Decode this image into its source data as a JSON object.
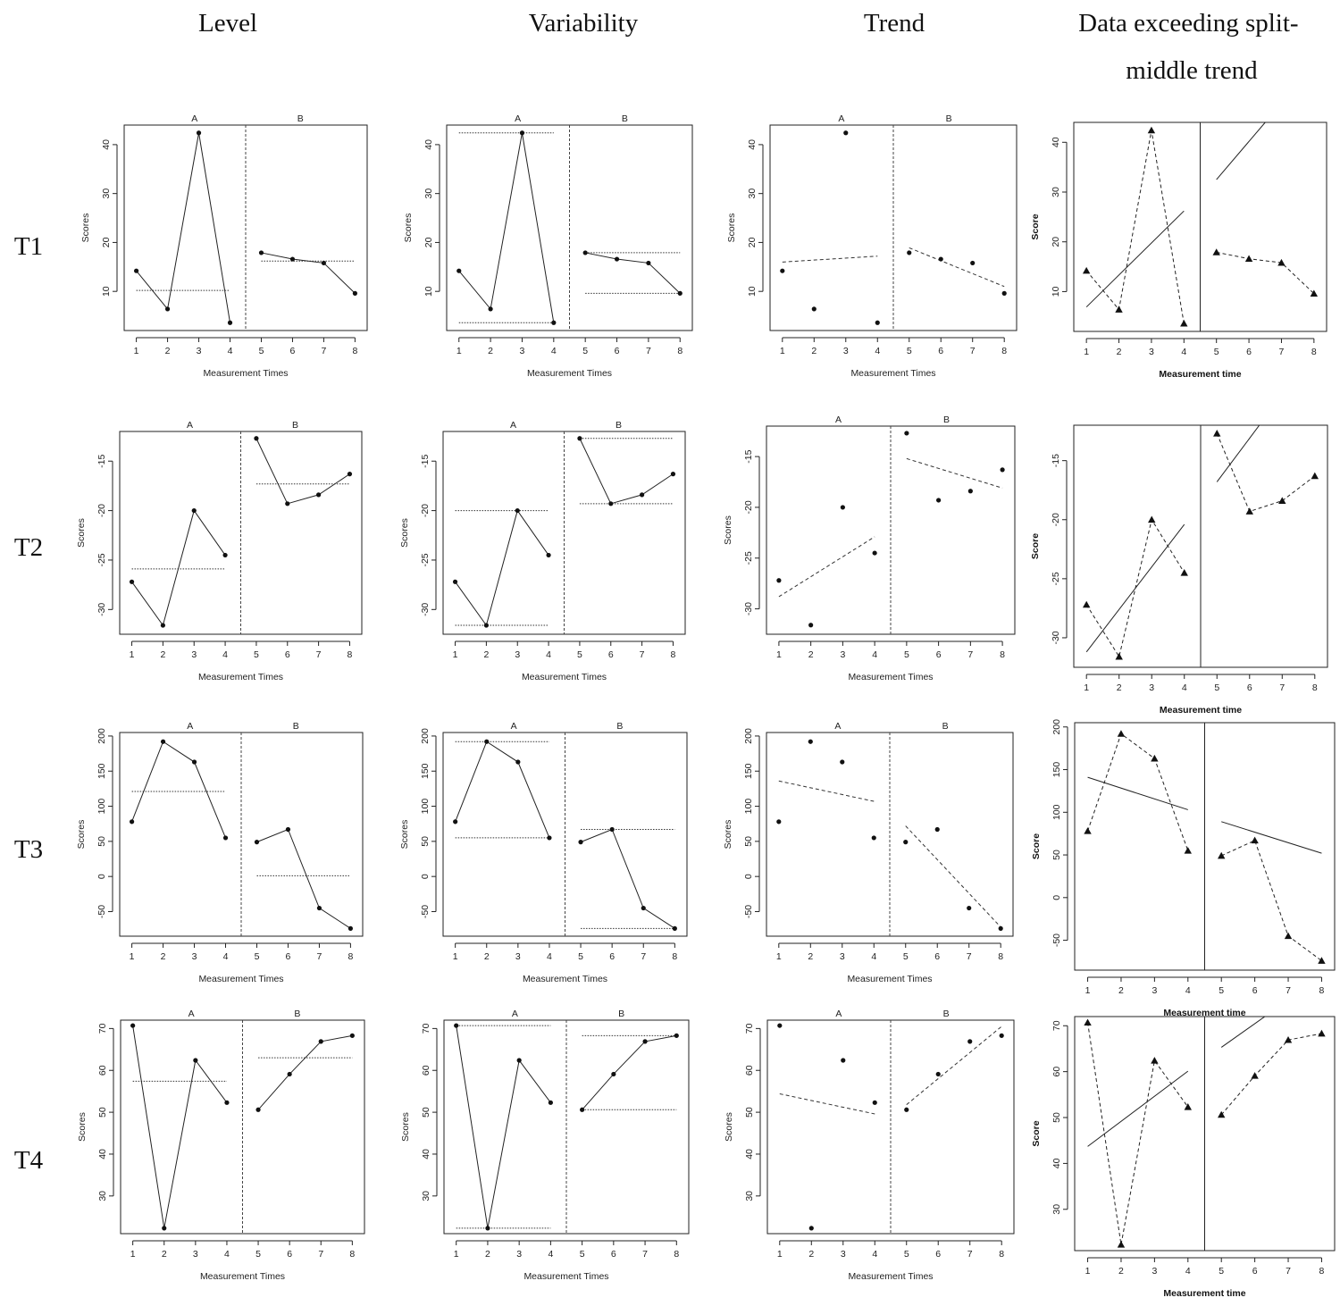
{
  "column_titles": [
    "Level",
    "Variability",
    "Trend",
    "Data exceeding split-middle trend"
  ],
  "row_labels": [
    "T1",
    "T2",
    "T3",
    "T4"
  ],
  "x_label": "Measurement Times",
  "x_label_alt": "Measurement time",
  "y_label": "Scores",
  "y_label_alt": "Score",
  "phase_labels": [
    "A",
    "B"
  ],
  "x_ticks": [
    1,
    2,
    3,
    4,
    5,
    6,
    7,
    8
  ],
  "phase_change_after": 4.5,
  "chart_data": [
    {
      "id": "T1",
      "type": "line",
      "x": [
        1,
        2,
        3,
        4,
        5,
        6,
        7,
        8
      ],
      "values": [
        14.2,
        6.4,
        42.4,
        3.6,
        17.9,
        16.6,
        15.8,
        9.6
      ],
      "ylim": [
        2,
        44
      ],
      "yticks": [
        10,
        20,
        30,
        40
      ],
      "level": {
        "A": 10.2,
        "B": 16.2
      },
      "variability": {
        "A": [
          3.6,
          42.4
        ],
        "B": [
          9.6,
          17.9
        ]
      },
      "trend": {
        "A": [
          [
            1,
            16.0
          ],
          [
            4,
            17.2
          ]
        ],
        "B": [
          [
            5,
            18.9
          ],
          [
            8,
            11.0
          ]
        ]
      },
      "split_middle": {
        "A": [
          [
            1,
            6.9
          ],
          [
            4,
            26.2
          ]
        ],
        "B": [
          [
            5,
            32.5
          ],
          [
            6.5,
            44
          ]
        ]
      }
    },
    {
      "id": "T2",
      "type": "line",
      "x": [
        1,
        2,
        3,
        4,
        5,
        6,
        7,
        8
      ],
      "values": [
        -27.2,
        -31.6,
        -20.0,
        -24.5,
        -12.7,
        -19.3,
        -18.4,
        -16.3
      ],
      "ylim": [
        -32.5,
        -12
      ],
      "yticks": [
        -15,
        -20,
        -25,
        -30
      ],
      "level": {
        "A": -25.9,
        "B": -17.3
      },
      "variability": {
        "A": [
          -31.6,
          -20.0
        ],
        "B": [
          -19.3,
          -12.7
        ]
      },
      "trend": {
        "A": [
          [
            1,
            -28.8
          ],
          [
            4,
            -22.9
          ]
        ],
        "B": [
          [
            5,
            -15.2
          ],
          [
            8,
            -18.1
          ]
        ]
      },
      "split_middle": {
        "A": [
          [
            1,
            -31.2
          ],
          [
            4,
            -20.4
          ]
        ],
        "B": [
          [
            5,
            -16.8
          ],
          [
            6.3,
            -12
          ]
        ]
      }
    },
    {
      "id": "T3",
      "type": "line",
      "x": [
        1,
        2,
        3,
        4,
        5,
        6,
        7,
        8
      ],
      "values": [
        78,
        192,
        163,
        55,
        49,
        67,
        -45,
        -74
      ],
      "ylim": [
        -85,
        205
      ],
      "yticks": [
        200,
        150,
        100,
        50,
        0,
        -50
      ],
      "level": {
        "A": 121,
        "B": 1
      },
      "variability": {
        "A": [
          55,
          192
        ],
        "B": [
          -74,
          67
        ]
      },
      "trend": {
        "A": [
          [
            1,
            136
          ],
          [
            4,
            107
          ]
        ],
        "B": [
          [
            5,
            72
          ],
          [
            8,
            -72
          ]
        ]
      },
      "split_middle": {
        "A": [
          [
            1,
            141
          ],
          [
            4,
            103
          ]
        ],
        "B": [
          [
            5,
            89
          ],
          [
            8,
            52
          ]
        ]
      }
    },
    {
      "id": "T4",
      "type": "line",
      "x": [
        1,
        2,
        3,
        4,
        5,
        6,
        7,
        8
      ],
      "values": [
        70.7,
        22.3,
        62.4,
        52.3,
        50.6,
        59.1,
        66.9,
        68.3
      ],
      "ylim": [
        21,
        72
      ],
      "yticks": [
        30,
        40,
        50,
        60,
        70
      ],
      "level": {
        "A": 57.4,
        "B": 63.0
      },
      "variability": {
        "A": [
          22.3,
          70.7
        ],
        "B": [
          50.6,
          68.3
        ]
      },
      "trend": {
        "A": [
          [
            1,
            54.4
          ],
          [
            4,
            49.6
          ]
        ],
        "B": [
          [
            5,
            51.8
          ],
          [
            8,
            70.5
          ]
        ]
      },
      "split_middle": {
        "A": [
          [
            1,
            43.7
          ],
          [
            4,
            60.1
          ]
        ],
        "B": [
          [
            5,
            65.3
          ],
          [
            6.3,
            72
          ]
        ]
      }
    }
  ]
}
